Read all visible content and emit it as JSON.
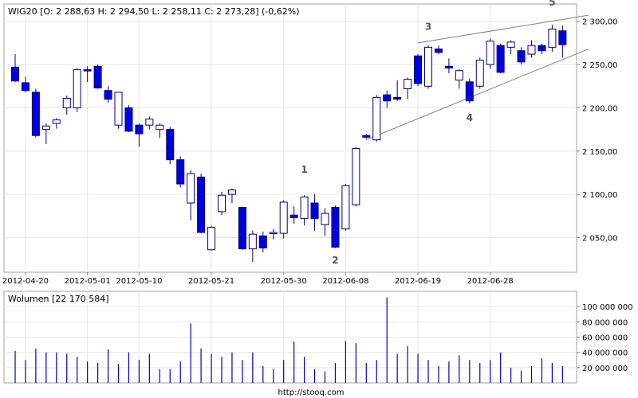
{
  "chart_data": [
    {
      "type": "candlestick",
      "header": "WIG20 [O: 2 288,63  H: 2 294,50  L: 2 258,11  C: 2 273,28] (-0,62%)",
      "ylim": [
        2010,
        2320
      ],
      "y_ticks": [
        2050,
        2100,
        2150,
        2200,
        2250,
        2300
      ],
      "y_tick_labels": [
        "2 050,00",
        "2 100,00",
        "2 150,00",
        "2 200,00",
        "2 250,00",
        "2 300,00"
      ],
      "x_tick_labels": [
        {
          "label": "2012-04-20",
          "index": 1
        },
        {
          "label": "2012-05-01",
          "index": 7
        },
        {
          "label": "2012-05-10",
          "index": 12
        },
        {
          "label": "2012-05-21",
          "index": 19
        },
        {
          "label": "2012-05-30",
          "index": 26
        },
        {
          "label": "2012-06-08",
          "index": 32
        },
        {
          "label": "2012-06-19",
          "index": 39
        },
        {
          "label": "2012-06-28",
          "index": 46
        }
      ],
      "candles": [
        {
          "o": 2247,
          "h": 2262,
          "l": 2230,
          "c": 2231
        },
        {
          "o": 2229,
          "h": 2236,
          "l": 2218,
          "c": 2220
        },
        {
          "o": 2218,
          "h": 2222,
          "l": 2166,
          "c": 2168
        },
        {
          "o": 2175,
          "h": 2182,
          "l": 2158,
          "c": 2179
        },
        {
          "o": 2182,
          "h": 2188,
          "l": 2176,
          "c": 2186
        },
        {
          "o": 2200,
          "h": 2214,
          "l": 2192,
          "c": 2211
        },
        {
          "o": 2200,
          "h": 2246,
          "l": 2195,
          "c": 2244
        },
        {
          "o": 2244,
          "h": 2248,
          "l": 2230,
          "c": 2243
        },
        {
          "o": 2248,
          "h": 2250,
          "l": 2222,
          "c": 2223
        },
        {
          "o": 2220,
          "h": 2225,
          "l": 2206,
          "c": 2210
        },
        {
          "o": 2180,
          "h": 2218,
          "l": 2176,
          "c": 2218
        },
        {
          "o": 2200,
          "h": 2203,
          "l": 2172,
          "c": 2173
        },
        {
          "o": 2180,
          "h": 2182,
          "l": 2155,
          "c": 2170
        },
        {
          "o": 2180,
          "h": 2190,
          "l": 2175,
          "c": 2187
        },
        {
          "o": 2175,
          "h": 2182,
          "l": 2165,
          "c": 2180
        },
        {
          "o": 2175,
          "h": 2178,
          "l": 2135,
          "c": 2140
        },
        {
          "o": 2140,
          "h": 2144,
          "l": 2108,
          "c": 2112
        },
        {
          "o": 2090,
          "h": 2128,
          "l": 2070,
          "c": 2124
        },
        {
          "o": 2120,
          "h": 2124,
          "l": 2055,
          "c": 2056
        },
        {
          "o": 2036,
          "h": 2064,
          "l": 2035,
          "c": 2062
        },
        {
          "o": 2080,
          "h": 2103,
          "l": 2076,
          "c": 2099
        },
        {
          "o": 2100,
          "h": 2107,
          "l": 2090,
          "c": 2105
        },
        {
          "o": 2085,
          "h": 2085,
          "l": 2036,
          "c": 2037
        },
        {
          "o": 2037,
          "h": 2058,
          "l": 2022,
          "c": 2054
        },
        {
          "o": 2052,
          "h": 2057,
          "l": 2033,
          "c": 2038
        },
        {
          "o": 2055,
          "h": 2060,
          "l": 2048,
          "c": 2056
        },
        {
          "o": 2055,
          "h": 2093,
          "l": 2049,
          "c": 2091
        },
        {
          "o": 2076,
          "h": 2086,
          "l": 2066,
          "c": 2073
        },
        {
          "o": 2072,
          "h": 2099,
          "l": 2064,
          "c": 2097
        },
        {
          "o": 2090,
          "h": 2100,
          "l": 2058,
          "c": 2072
        },
        {
          "o": 2065,
          "h": 2084,
          "l": 2052,
          "c": 2078
        },
        {
          "o": 2085,
          "h": 2087,
          "l": 2038,
          "c": 2039
        },
        {
          "o": 2060,
          "h": 2112,
          "l": 2058,
          "c": 2110
        },
        {
          "o": 2088,
          "h": 2155,
          "l": 2086,
          "c": 2153
        },
        {
          "o": 2168,
          "h": 2170,
          "l": 2164,
          "c": 2166
        },
        {
          "o": 2163,
          "h": 2215,
          "l": 2161,
          "c": 2212
        },
        {
          "o": 2215,
          "h": 2220,
          "l": 2200,
          "c": 2208
        },
        {
          "o": 2212,
          "h": 2232,
          "l": 2208,
          "c": 2210
        },
        {
          "o": 2222,
          "h": 2235,
          "l": 2210,
          "c": 2233
        },
        {
          "o": 2260,
          "h": 2262,
          "l": 2225,
          "c": 2228
        },
        {
          "o": 2225,
          "h": 2272,
          "l": 2222,
          "c": 2270
        },
        {
          "o": 2268,
          "h": 2272,
          "l": 2262,
          "c": 2264
        },
        {
          "o": 2248,
          "h": 2257,
          "l": 2240,
          "c": 2246
        },
        {
          "o": 2232,
          "h": 2245,
          "l": 2222,
          "c": 2243
        },
        {
          "o": 2230,
          "h": 2234,
          "l": 2205,
          "c": 2208
        },
        {
          "o": 2225,
          "h": 2258,
          "l": 2222,
          "c": 2255
        },
        {
          "o": 2250,
          "h": 2280,
          "l": 2245,
          "c": 2277
        },
        {
          "o": 2272,
          "h": 2274,
          "l": 2240,
          "c": 2241
        },
        {
          "o": 2270,
          "h": 2278,
          "l": 2262,
          "c": 2276
        },
        {
          "o": 2266,
          "h": 2270,
          "l": 2250,
          "c": 2253
        },
        {
          "o": 2262,
          "h": 2278,
          "l": 2258,
          "c": 2272
        },
        {
          "o": 2272,
          "h": 2274,
          "l": 2262,
          "c": 2266
        },
        {
          "o": 2270,
          "h": 2296,
          "l": 2265,
          "c": 2291
        },
        {
          "o": 2289,
          "h": 2295,
          "l": 2258,
          "c": 2273
        }
      ],
      "trendlines": [
        {
          "from": [
            34,
            2163
          ],
          "to": [
            55.5,
            2268
          ]
        },
        {
          "from": [
            39,
            2275
          ],
          "to": [
            55.5,
            2307
          ]
        }
      ],
      "annotations": [
        {
          "label": "1",
          "index": 28,
          "value": 2125
        },
        {
          "label": "2",
          "index": 31,
          "value": 2020
        },
        {
          "label": "3",
          "index": 40,
          "value": 2290
        },
        {
          "label": "4",
          "index": 44,
          "value": 2185
        },
        {
          "label": "5",
          "index": 52,
          "value": 2318
        }
      ],
      "grid": true,
      "colors": {
        "up_fill": "#ffffff",
        "down_fill": "#0000e0",
        "candle_stroke": "#000080",
        "grid": "#e6e6e6",
        "trendline": "#808080",
        "annotation": "#555555"
      }
    },
    {
      "type": "bar",
      "header": "Wolumen [22 170 584]",
      "ylim": [
        0,
        120000000
      ],
      "y_ticks": [
        20000000,
        40000000,
        60000000,
        80000000,
        100000000
      ],
      "y_tick_labels": [
        "20 000 000",
        "40 000 000",
        "60 000 000",
        "80 000 000",
        "100 000 000"
      ],
      "values": [
        42000000,
        30000000,
        45000000,
        40000000,
        40000000,
        38000000,
        34000000,
        28000000,
        26000000,
        44000000,
        25000000,
        40000000,
        30000000,
        38000000,
        18000000,
        18000000,
        28000000,
        78000000,
        45000000,
        38000000,
        34000000,
        40000000,
        30000000,
        40000000,
        22000000,
        18000000,
        30000000,
        54000000,
        34000000,
        18000000,
        15000000,
        26000000,
        55000000,
        52000000,
        26000000,
        30000000,
        112000000,
        38000000,
        48000000,
        38000000,
        30000000,
        22000000,
        28000000,
        36000000,
        30000000,
        26000000,
        30000000,
        40000000,
        20000000,
        16000000,
        22000000,
        32000000,
        26000000,
        22000000
      ],
      "grid": true,
      "colors": {
        "bar": "#0000c0",
        "grid": "#e6e6e6"
      }
    }
  ],
  "footer": "http://stooq.com"
}
